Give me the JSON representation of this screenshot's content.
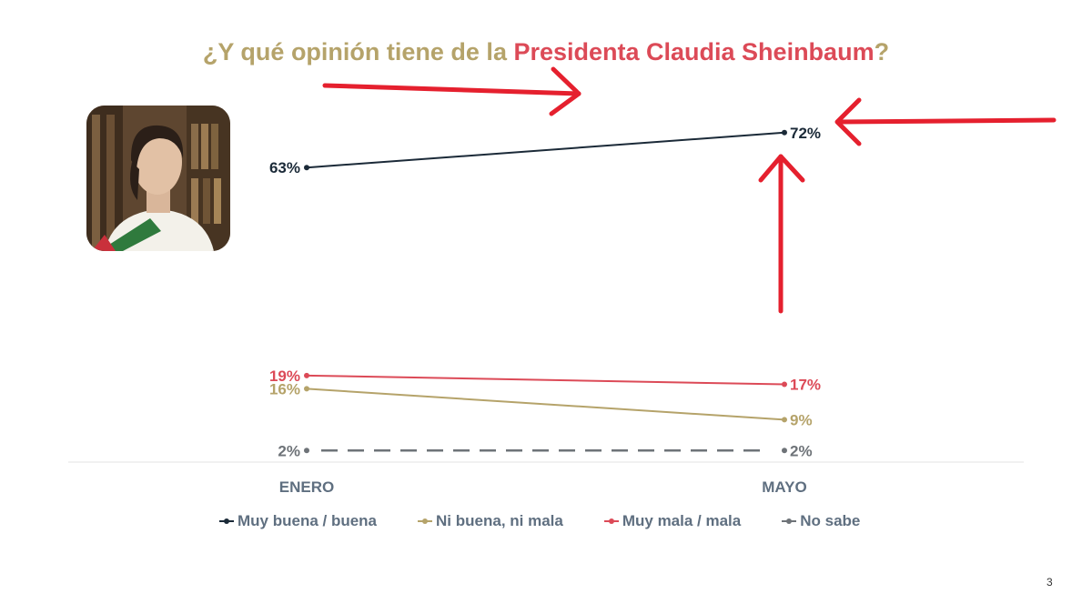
{
  "title": {
    "prefix": "¿Y qué opinión tiene de la ",
    "highlight": "Presidenta Claudia Sheinbaum",
    "suffix": "?"
  },
  "page_number": "3",
  "colors": {
    "title_gold": "#b5a36a",
    "title_red": "#dc4a57",
    "arrow_red": "#e5202e"
  },
  "chart_data": {
    "type": "line",
    "x": [
      "ENERO",
      "MAYO"
    ],
    "series": [
      {
        "name": "Muy buena / buena",
        "values": [
          63,
          72
        ],
        "labels": [
          "63%",
          "72%"
        ],
        "color": "#1b2a38",
        "dashed": false
      },
      {
        "name": "Ni buena, ni mala",
        "values": [
          16,
          9
        ],
        "labels": [
          "16%",
          "9%"
        ],
        "color": "#b5a36a",
        "dashed": false
      },
      {
        "name": "Muy mala / mala",
        "values": [
          19,
          17
        ],
        "labels": [
          "19%",
          "17%"
        ],
        "color": "#dc4a57",
        "dashed": false
      },
      {
        "name": "No sabe",
        "values": [
          2,
          2
        ],
        "labels": [
          "2%",
          "2%"
        ],
        "color": "#6e7378",
        "dashed": true
      }
    ],
    "ylim": [
      0,
      80
    ],
    "legend_position": "bottom",
    "grid": false,
    "annotations": [
      "red arrows pointing to 72%"
    ]
  }
}
